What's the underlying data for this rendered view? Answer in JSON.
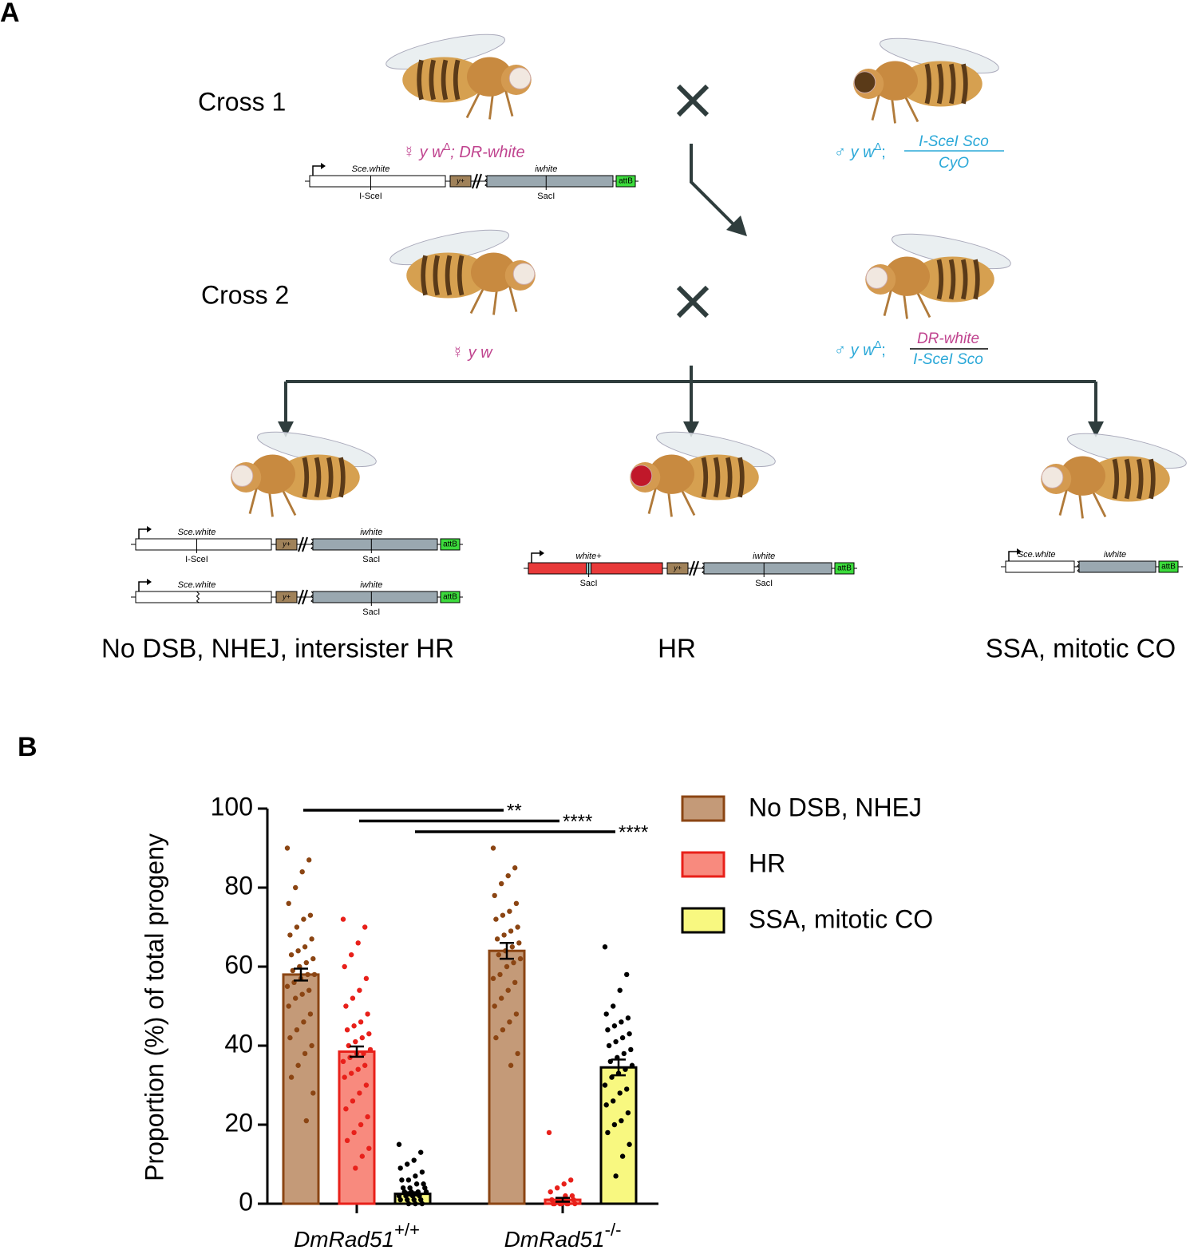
{
  "panel_a": {
    "label": "A",
    "crosses": [
      "Cross 1",
      "Cross 2"
    ],
    "genotypes": {
      "cross1_female": {
        "symbol": "☿",
        "text": "y w",
        "sup": "Δ",
        "rest": "; DR-white"
      },
      "cross1_male": {
        "symbol": "♂",
        "text": "y w",
        "sup": "Δ",
        "rest": ";",
        "numerator": "I-SceI Sco",
        "denominator": "CyO"
      },
      "cross2_female": {
        "symbol": "☿",
        "text": "y w"
      },
      "cross2_male": {
        "symbol": "♂",
        "text": "y w",
        "sup": "Δ",
        "rest": ";",
        "numerator": "DR-white",
        "denominator": "I-SceI Sco"
      }
    },
    "constructs": {
      "cross1": {
        "first": "Sce.white",
        "first_site": "I-SceI",
        "marker": "y+",
        "second": "iwhite",
        "second_site": "SacI",
        "end": "attB"
      },
      "outcome1a": {
        "first": "Sce.white",
        "first_site": "I-SceI",
        "marker": "y+",
        "second": "iwhite",
        "second_site": "SacI",
        "end": "attB"
      },
      "outcome1b": {
        "first": "Sce.white",
        "marker": "y+",
        "second": "iwhite",
        "second_site": "SacI",
        "end": "attB"
      },
      "outcome2": {
        "first": "white+",
        "first_site": "SacI",
        "marker": "y+",
        "second": "iwhite",
        "second_site": "SacI",
        "end": "attB"
      },
      "outcome3": {
        "first": "Sce.white",
        "second": "iwhite",
        "end": "attB"
      }
    },
    "outcomes": [
      "No DSB, NHEJ, intersister HR",
      "HR",
      "SSA, mitotic CO"
    ]
  },
  "chart_data": {
    "type": "bar",
    "panel_label": "B",
    "ylabel": "Proportion (%) of total progeny",
    "categories": [
      {
        "label": "DmRad51",
        "superscript": "+/+"
      },
      {
        "label": "DmRad51",
        "superscript": "-/-"
      }
    ],
    "ylim": [
      0,
      100
    ],
    "yticks": [
      0,
      20,
      40,
      60,
      80,
      100
    ],
    "series": [
      {
        "name": "No DSB, NHEJ",
        "color": "#c49a78",
        "edge_color": "#8b4513",
        "values": [
          58,
          64
        ],
        "errors": [
          1.5,
          2
        ],
        "points": [
          [
            90,
            87,
            84,
            80,
            76,
            73,
            72,
            70,
            68,
            67,
            65,
            64,
            63,
            62,
            61,
            60,
            59,
            58,
            58,
            57,
            56,
            55,
            54,
            53,
            52,
            50,
            48,
            46,
            44,
            42,
            40,
            38,
            35,
            32,
            28,
            21
          ],
          [
            90,
            85,
            83,
            81,
            78,
            76,
            74,
            73,
            72,
            70,
            69,
            68,
            67,
            66,
            65,
            64,
            63,
            62,
            61,
            60,
            58,
            57,
            56,
            54,
            52,
            50,
            48,
            46,
            44,
            42,
            38,
            35
          ]
        ]
      },
      {
        "name": "HR",
        "color": "#f88a7e",
        "edge_color": "#e8201a",
        "values": [
          38.5,
          1
        ],
        "errors": [
          1.3,
          0.5
        ],
        "points": [
          [
            72,
            70,
            66,
            63,
            60,
            57,
            54,
            52,
            50,
            48,
            46,
            45,
            44,
            43,
            42,
            41,
            40,
            39,
            38,
            38,
            37,
            36,
            35,
            34,
            33,
            32,
            30,
            28,
            26,
            24,
            22,
            20,
            18,
            16,
            14,
            12,
            9
          ],
          [
            18,
            6,
            5,
            4,
            3,
            2,
            2,
            1,
            1,
            1,
            0,
            0,
            0,
            0,
            0,
            0,
            0
          ]
        ]
      },
      {
        "name": "SSA, mitotic CO",
        "color": "#f8f880",
        "edge_color": "#000000",
        "values": [
          2.5,
          34.5
        ],
        "errors": [
          0.4,
          2
        ],
        "points": [
          [
            15,
            13,
            11,
            10,
            9,
            8,
            7,
            6,
            6,
            5,
            5,
            4,
            4,
            4,
            3,
            3,
            3,
            3,
            2,
            2,
            2,
            2,
            1,
            1,
            1,
            1,
            0,
            0,
            0
          ],
          [
            65,
            58,
            54,
            50,
            48,
            47,
            46,
            45,
            44,
            43,
            42,
            41,
            40,
            39,
            38,
            37,
            36,
            35,
            34,
            33,
            32,
            30,
            29,
            28,
            26,
            25,
            23,
            21,
            20,
            18,
            15,
            12,
            7
          ]
        ]
      }
    ],
    "significance": [
      {
        "series": 0,
        "label": "**"
      },
      {
        "series": 1,
        "label": "****"
      },
      {
        "series": 2,
        "label": "****"
      }
    ]
  }
}
